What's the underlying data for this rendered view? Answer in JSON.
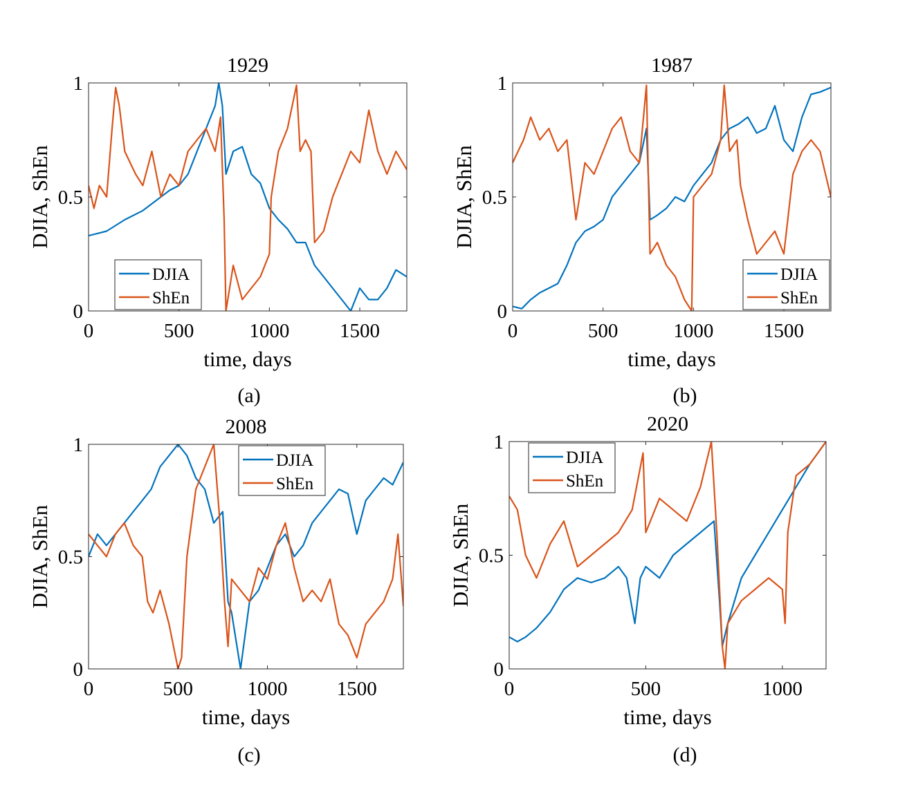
{
  "figure": {
    "colors": {
      "djia": "#0072BD",
      "shen": "#D95319",
      "axes": "#262626"
    }
  },
  "chart_data": [
    {
      "type": "line",
      "title": "1929",
      "caption": "(a)",
      "xlabel": "time, days",
      "ylabel": "DJIA, ShEn",
      "xlim": [
        0,
        1760
      ],
      "ylim": [
        0,
        1
      ],
      "xticks": [
        0,
        500,
        1000,
        1500
      ],
      "xtick_labels": [
        "0",
        "500",
        "1000",
        "1500"
      ],
      "yticks": [
        0,
        0.5,
        1
      ],
      "ytick_labels": [
        "0",
        "0.5",
        "1"
      ],
      "legend": {
        "position": "bottom-left",
        "entries": [
          "DJIA",
          "ShEn"
        ]
      },
      "series": [
        {
          "name": "DJIA",
          "color": "#0072BD",
          "x": [
            0,
            50,
            100,
            200,
            300,
            400,
            450,
            500,
            550,
            600,
            650,
            700,
            720,
            740,
            760,
            780,
            800,
            850,
            900,
            950,
            1000,
            1050,
            1100,
            1150,
            1200,
            1250,
            1300,
            1350,
            1400,
            1450,
            1500,
            1550,
            1600,
            1650,
            1700,
            1760
          ],
          "y": [
            0.33,
            0.34,
            0.35,
            0.4,
            0.44,
            0.5,
            0.53,
            0.55,
            0.6,
            0.7,
            0.8,
            0.9,
            1.0,
            0.9,
            0.6,
            0.65,
            0.7,
            0.72,
            0.6,
            0.56,
            0.45,
            0.4,
            0.36,
            0.3,
            0.3,
            0.2,
            0.15,
            0.1,
            0.05,
            0.0,
            0.1,
            0.05,
            0.05,
            0.1,
            0.18,
            0.15
          ]
        },
        {
          "name": "ShEn",
          "color": "#D95319",
          "x": [
            0,
            30,
            60,
            100,
            130,
            150,
            170,
            200,
            230,
            260,
            300,
            350,
            400,
            450,
            500,
            550,
            600,
            650,
            700,
            730,
            750,
            760,
            780,
            800,
            850,
            900,
            950,
            1000,
            1010,
            1050,
            1100,
            1150,
            1170,
            1200,
            1230,
            1250,
            1300,
            1350,
            1400,
            1450,
            1500,
            1550,
            1600,
            1650,
            1700,
            1760
          ],
          "y": [
            0.55,
            0.45,
            0.55,
            0.5,
            0.8,
            0.98,
            0.9,
            0.7,
            0.65,
            0.6,
            0.55,
            0.7,
            0.5,
            0.6,
            0.55,
            0.7,
            0.75,
            0.8,
            0.7,
            0.85,
            0.4,
            0.0,
            0.1,
            0.2,
            0.05,
            0.1,
            0.15,
            0.25,
            0.5,
            0.7,
            0.8,
            0.99,
            0.7,
            0.75,
            0.7,
            0.3,
            0.35,
            0.5,
            0.6,
            0.7,
            0.65,
            0.88,
            0.7,
            0.6,
            0.7,
            0.62
          ]
        }
      ]
    },
    {
      "type": "line",
      "title": "1987",
      "caption": "(b)",
      "xlabel": "time, days",
      "ylabel": "DJIA, ShEn",
      "xlim": [
        0,
        1760
      ],
      "ylim": [
        0,
        1
      ],
      "xticks": [
        0,
        500,
        1000,
        1500
      ],
      "xtick_labels": [
        "0",
        "500",
        "1000",
        "1500"
      ],
      "yticks": [
        0,
        0.5,
        1
      ],
      "ytick_labels": [
        "0",
        "0.5",
        "1"
      ],
      "legend": {
        "position": "bottom-right",
        "entries": [
          "DJIA",
          "ShEn"
        ]
      },
      "series": [
        {
          "name": "DJIA",
          "color": "#0072BD",
          "x": [
            0,
            50,
            100,
            150,
            200,
            250,
            300,
            350,
            400,
            450,
            500,
            550,
            600,
            650,
            700,
            740,
            760,
            800,
            850,
            900,
            950,
            1000,
            1050,
            1100,
            1150,
            1200,
            1250,
            1300,
            1350,
            1400,
            1450,
            1500,
            1550,
            1600,
            1650,
            1700,
            1760
          ],
          "y": [
            0.02,
            0.01,
            0.05,
            0.08,
            0.1,
            0.12,
            0.2,
            0.3,
            0.35,
            0.37,
            0.4,
            0.5,
            0.55,
            0.6,
            0.65,
            0.8,
            0.4,
            0.42,
            0.45,
            0.5,
            0.48,
            0.55,
            0.6,
            0.65,
            0.75,
            0.8,
            0.82,
            0.85,
            0.78,
            0.8,
            0.9,
            0.75,
            0.7,
            0.85,
            0.95,
            0.96,
            0.98
          ]
        },
        {
          "name": "ShEn",
          "color": "#D95319",
          "x": [
            0,
            30,
            60,
            100,
            150,
            200,
            250,
            300,
            350,
            400,
            450,
            500,
            550,
            600,
            650,
            700,
            740,
            750,
            760,
            800,
            850,
            900,
            950,
            990,
            1000,
            1050,
            1100,
            1150,
            1170,
            1200,
            1240,
            1260,
            1300,
            1350,
            1400,
            1450,
            1500,
            1550,
            1600,
            1650,
            1700,
            1760
          ],
          "y": [
            0.65,
            0.7,
            0.75,
            0.85,
            0.75,
            0.8,
            0.7,
            0.75,
            0.4,
            0.65,
            0.6,
            0.7,
            0.8,
            0.85,
            0.7,
            0.65,
            0.99,
            0.6,
            0.25,
            0.3,
            0.2,
            0.15,
            0.05,
            0.0,
            0.5,
            0.55,
            0.6,
            0.75,
            0.99,
            0.7,
            0.75,
            0.55,
            0.4,
            0.25,
            0.3,
            0.35,
            0.25,
            0.6,
            0.7,
            0.75,
            0.7,
            0.5
          ]
        }
      ]
    },
    {
      "type": "line",
      "title": "2008",
      "caption": "(c)",
      "xlabel": "time, days",
      "ylabel": "DJIA, ShEn",
      "xlim": [
        0,
        1760
      ],
      "ylim": [
        0,
        1
      ],
      "xticks": [
        0,
        500,
        1000,
        1500
      ],
      "xtick_labels": [
        "0",
        "500",
        "1000",
        "1500"
      ],
      "yticks": [
        0,
        0.5,
        1
      ],
      "ytick_labels": [
        "0",
        "0.5",
        "1"
      ],
      "legend": {
        "position": "top-center",
        "entries": [
          "DJIA",
          "ShEn"
        ]
      },
      "series": [
        {
          "name": "DJIA",
          "color": "#0072BD",
          "x": [
            0,
            50,
            100,
            150,
            200,
            250,
            300,
            350,
            400,
            450,
            500,
            550,
            600,
            650,
            700,
            750,
            780,
            800,
            850,
            900,
            950,
            1000,
            1050,
            1100,
            1150,
            1200,
            1250,
            1300,
            1350,
            1400,
            1450,
            1500,
            1550,
            1600,
            1650,
            1700,
            1760
          ],
          "y": [
            0.5,
            0.6,
            0.55,
            0.6,
            0.65,
            0.7,
            0.75,
            0.8,
            0.9,
            0.95,
            1.0,
            0.95,
            0.85,
            0.8,
            0.65,
            0.7,
            0.3,
            0.25,
            0.0,
            0.3,
            0.35,
            0.45,
            0.55,
            0.6,
            0.5,
            0.55,
            0.65,
            0.7,
            0.75,
            0.8,
            0.78,
            0.6,
            0.75,
            0.8,
            0.85,
            0.82,
            0.92
          ]
        },
        {
          "name": "ShEn",
          "color": "#D95319",
          "x": [
            0,
            50,
            100,
            150,
            200,
            250,
            300,
            330,
            360,
            400,
            450,
            500,
            520,
            550,
            600,
            650,
            700,
            730,
            760,
            780,
            800,
            850,
            900,
            950,
            1000,
            1050,
            1100,
            1150,
            1200,
            1250,
            1300,
            1350,
            1400,
            1450,
            1500,
            1550,
            1600,
            1650,
            1700,
            1730,
            1760
          ],
          "y": [
            0.6,
            0.55,
            0.5,
            0.6,
            0.65,
            0.55,
            0.5,
            0.3,
            0.25,
            0.35,
            0.2,
            0.0,
            0.05,
            0.5,
            0.8,
            0.9,
            1.0,
            0.7,
            0.3,
            0.1,
            0.4,
            0.35,
            0.3,
            0.45,
            0.4,
            0.55,
            0.65,
            0.45,
            0.3,
            0.35,
            0.3,
            0.4,
            0.2,
            0.15,
            0.05,
            0.2,
            0.25,
            0.3,
            0.4,
            0.6,
            0.28
          ]
        }
      ]
    },
    {
      "type": "line",
      "title": "2020",
      "caption": "(d)",
      "xlabel": "time, days",
      "ylabel": "DJIA, ShEn",
      "xlim": [
        0,
        1160
      ],
      "ylim": [
        0,
        1
      ],
      "xticks": [
        0,
        500,
        1000
      ],
      "xtick_labels": [
        "0",
        "500",
        "1000"
      ],
      "yticks": [
        0,
        0.5,
        1
      ],
      "ytick_labels": [
        "0",
        "0.5",
        "1"
      ],
      "legend": {
        "position": "top-left",
        "entries": [
          "DJIA",
          "ShEn"
        ]
      },
      "series": [
        {
          "name": "DJIA",
          "color": "#0072BD",
          "x": [
            0,
            30,
            60,
            100,
            150,
            200,
            250,
            300,
            350,
            400,
            430,
            460,
            480,
            500,
            550,
            600,
            650,
            700,
            750,
            770,
            780,
            800,
            850,
            900,
            950,
            1000,
            1050,
            1100,
            1130,
            1160
          ],
          "y": [
            0.14,
            0.12,
            0.14,
            0.18,
            0.25,
            0.35,
            0.4,
            0.38,
            0.4,
            0.45,
            0.4,
            0.2,
            0.4,
            0.45,
            0.4,
            0.5,
            0.55,
            0.6,
            0.65,
            0.3,
            0.1,
            0.2,
            0.4,
            0.5,
            0.6,
            0.7,
            0.8,
            0.9,
            0.95,
            1.0
          ]
        },
        {
          "name": "ShEn",
          "color": "#D95319",
          "x": [
            0,
            30,
            60,
            100,
            150,
            200,
            250,
            300,
            350,
            400,
            450,
            490,
            500,
            550,
            600,
            650,
            700,
            740,
            760,
            780,
            790,
            800,
            850,
            900,
            950,
            1000,
            1010,
            1020,
            1050,
            1100,
            1130,
            1160
          ],
          "y": [
            0.76,
            0.7,
            0.5,
            0.4,
            0.55,
            0.65,
            0.45,
            0.5,
            0.55,
            0.6,
            0.7,
            0.95,
            0.6,
            0.75,
            0.7,
            0.65,
            0.8,
            1.0,
            0.6,
            0.1,
            0.0,
            0.2,
            0.3,
            0.35,
            0.4,
            0.35,
            0.2,
            0.6,
            0.85,
            0.9,
            0.95,
            1.0
          ]
        }
      ]
    }
  ]
}
